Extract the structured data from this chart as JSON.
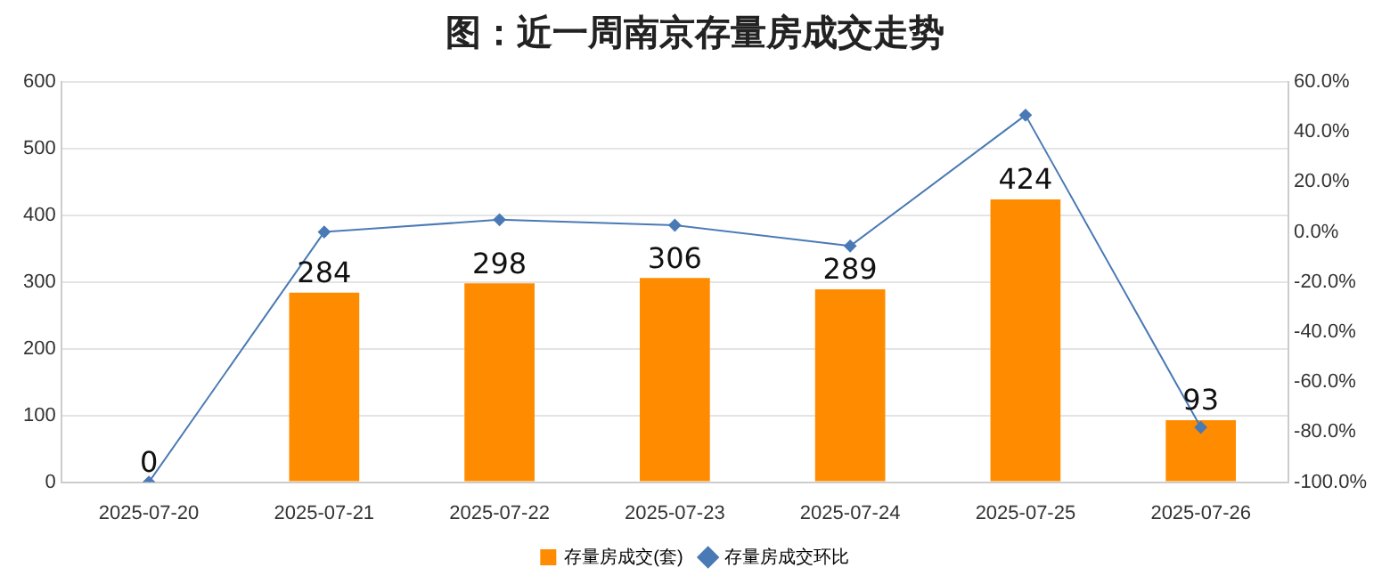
{
  "chart_data": {
    "type": "bar",
    "title": "图：近一周南京存量房成交走势",
    "categories": [
      "2025-07-20",
      "2025-07-21",
      "2025-07-22",
      "2025-07-23",
      "2025-07-24",
      "2025-07-25",
      "2025-07-26"
    ],
    "series": [
      {
        "name": "存量房成交(套)",
        "color": "#ff8c00",
        "values": [
          0,
          284,
          298,
          306,
          289,
          424,
          93
        ],
        "data_labels": true
      },
      {
        "name": "存量房成交环比",
        "type": "line",
        "axis": "y2",
        "color": "#4a7ab5",
        "marker": "diamond",
        "values": [
          -100,
          0,
          4.9,
          2.7,
          -5.6,
          46.7,
          -78.1
        ]
      }
    ],
    "ylim": [
      0,
      600
    ],
    "yticks": [
      0,
      100,
      200,
      300,
      400,
      500,
      600
    ],
    "y2lim": [
      -100,
      60
    ],
    "y2ticks": [
      {
        "value": -100,
        "label": "-100.0%"
      },
      {
        "value": -80,
        "label": "-80.0%"
      },
      {
        "value": -60,
        "label": "-60.0%"
      },
      {
        "value": -40,
        "label": "-40.0%"
      },
      {
        "value": -20,
        "label": "-20.0%"
      },
      {
        "value": 0,
        "label": "0.0%"
      },
      {
        "value": 20,
        "label": "20.0%"
      },
      {
        "value": 40,
        "label": "40.0%"
      },
      {
        "value": 60,
        "label": "60.0%"
      }
    ],
    "grid": "y",
    "legend": "bottom"
  }
}
